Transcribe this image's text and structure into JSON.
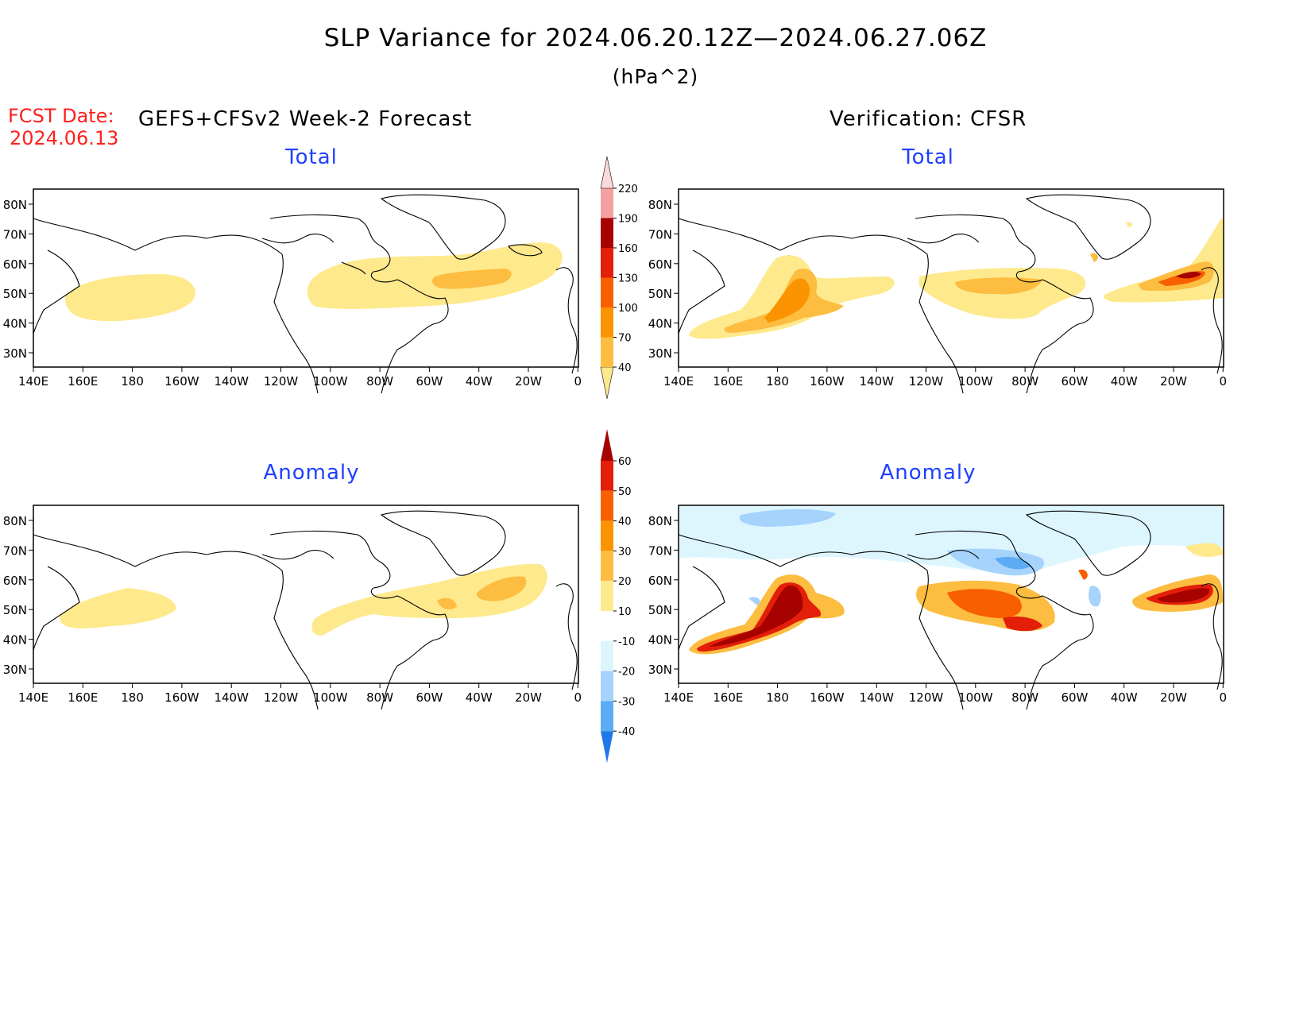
{
  "title": "SLP Variance for 2024.06.20.12Z—2024.06.27.06Z",
  "units": "(hPa^2)",
  "forecast_date_label": "FCST Date:",
  "forecast_date": "2024.06.13",
  "left_header": "GEFS+CFSv2 Week-2 Forecast",
  "right_header": "Verification: CFSR",
  "panels": {
    "forecast_total": {
      "subtitle": "Total"
    },
    "verification_total": {
      "subtitle": "Total"
    },
    "forecast_anomaly": {
      "subtitle": "Anomaly"
    },
    "verification_anomaly": {
      "subtitle": "Anomaly"
    }
  },
  "lat_ticks": [
    "80N",
    "70N",
    "60N",
    "50N",
    "40N",
    "30N"
  ],
  "lon_ticks": [
    "140E",
    "160E",
    "180",
    "160W",
    "140W",
    "120W",
    "100W",
    "80W",
    "60W",
    "40W",
    "20W",
    "0"
  ],
  "colorbar_total": {
    "levels": [
      "40",
      "70",
      "100",
      "130",
      "160",
      "190",
      "220"
    ],
    "colors": [
      "#fee98c",
      "#fcbd40",
      "#fb9400",
      "#f85f00",
      "#e31e09",
      "#a60200",
      "#f4a0a0",
      "#fcd8d8"
    ]
  },
  "colorbar_anomaly": {
    "levels": [
      "60",
      "50",
      "40",
      "30",
      "20",
      "10",
      "-10",
      "-20",
      "-30",
      "-40"
    ],
    "colors": [
      "#a60200",
      "#e31e09",
      "#f85f00",
      "#fb9400",
      "#fcbd40",
      "#fee98c",
      "#ffffff",
      "#ddf6fe",
      "#a5d3fc",
      "#5bacf5",
      "#1f78e8"
    ]
  }
}
